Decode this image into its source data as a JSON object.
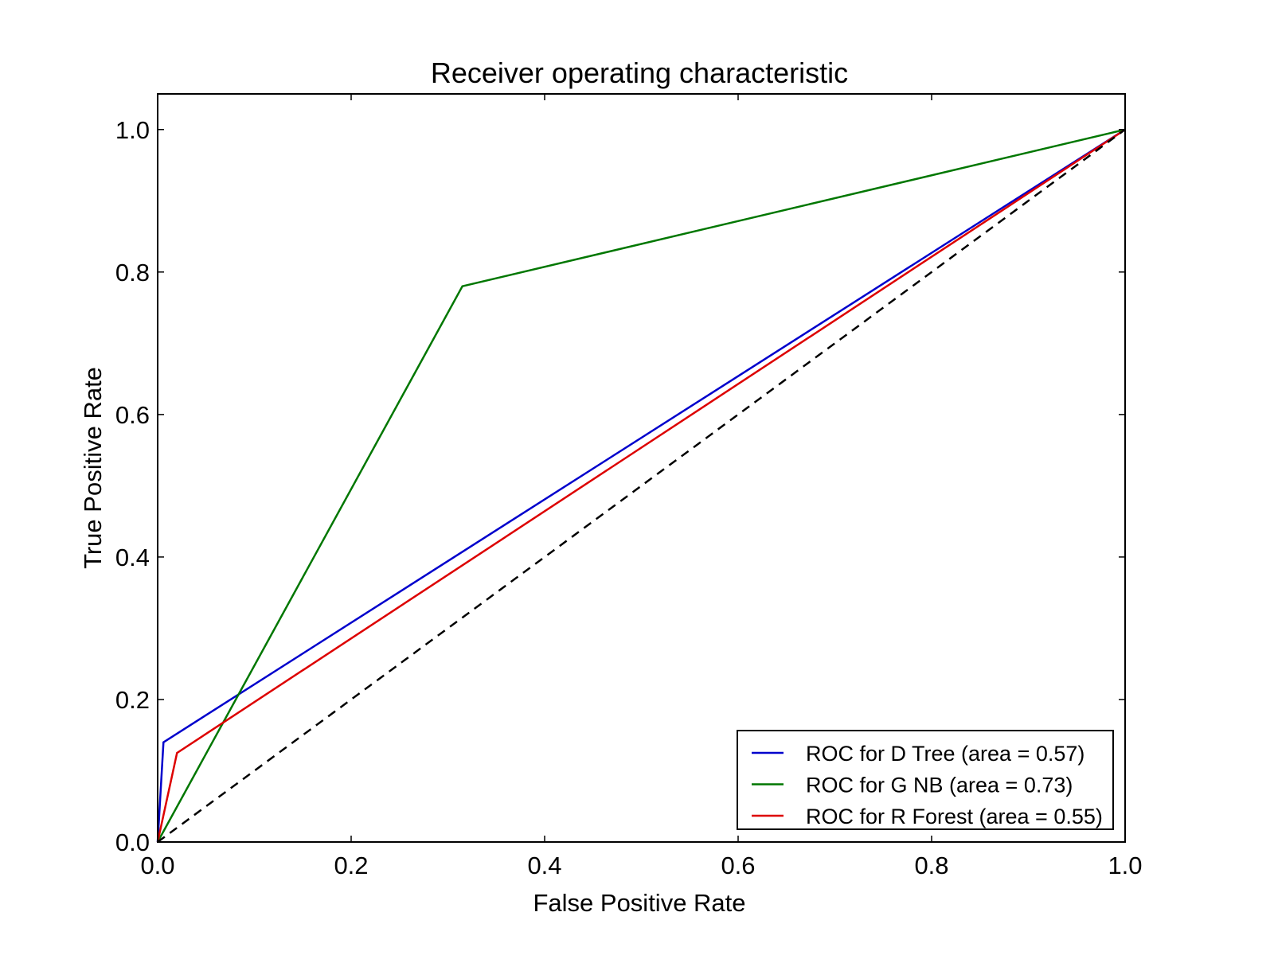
{
  "chart_data": {
    "type": "line",
    "title": "Receiver operating characteristic",
    "xlabel": "False Positive Rate",
    "ylabel": "True Positive Rate",
    "xlim": [
      0.0,
      1.0
    ],
    "ylim": [
      0.0,
      1.05
    ],
    "xticks": [
      0.0,
      0.2,
      0.4,
      0.6,
      0.8,
      1.0
    ],
    "yticks": [
      0.0,
      0.2,
      0.4,
      0.6,
      0.8,
      1.0
    ],
    "xtick_labels": [
      "0.0",
      "0.2",
      "0.4",
      "0.6",
      "0.8",
      "1.0"
    ],
    "ytick_labels": [
      "0.0",
      "0.2",
      "0.4",
      "0.6",
      "0.8",
      "1.0"
    ],
    "grid": false,
    "legend_position": "bottom-right",
    "series": [
      {
        "name": "ROC for D Tree (area = 0.57)",
        "color": "#0000cc",
        "points": [
          [
            0.0,
            0.0
          ],
          [
            0.006,
            0.14
          ],
          [
            1.0,
            1.0
          ]
        ]
      },
      {
        "name": "ROC for G NB (area = 0.73)",
        "color": "#007700",
        "points": [
          [
            0.0,
            0.0
          ],
          [
            0.315,
            0.78
          ],
          [
            1.0,
            1.0
          ]
        ]
      },
      {
        "name": "ROC for R Forest (area = 0.55)",
        "color": "#dd0000",
        "points": [
          [
            0.0,
            0.0
          ],
          [
            0.02,
            0.125
          ],
          [
            1.0,
            1.0
          ]
        ]
      }
    ],
    "reference_line": {
      "color": "#000000",
      "dashed": true,
      "points": [
        [
          0.0,
          0.0
        ],
        [
          1.0,
          1.0
        ]
      ]
    }
  }
}
